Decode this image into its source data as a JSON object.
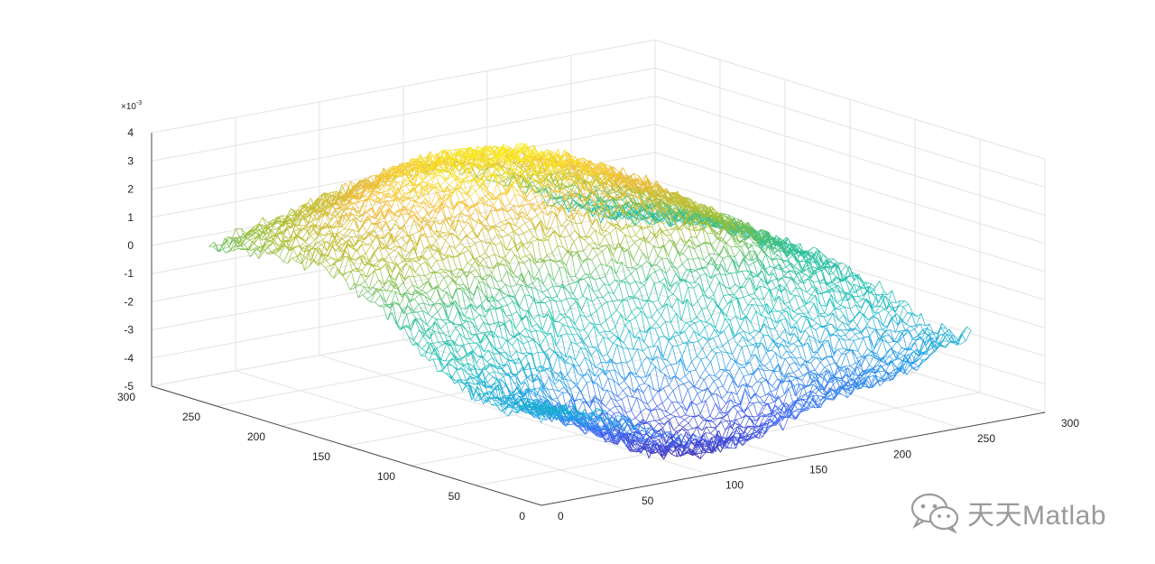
{
  "chart_data": {
    "type": "surface-mesh",
    "title": "",
    "xlabel": "",
    "ylabel": "",
    "zlabel": "",
    "x_ticks": [
      "0",
      "50",
      "100",
      "150",
      "200",
      "250",
      "300"
    ],
    "y_ticks": [
      "0",
      "50",
      "100",
      "150",
      "200",
      "250",
      "300"
    ],
    "z_ticks": [
      "-5",
      "-4",
      "-3",
      "-2",
      "-1",
      "0",
      "1",
      "2",
      "3",
      "4"
    ],
    "z_exponent_base": "×10",
    "z_exponent_power": "-3",
    "xlim": [
      0,
      300
    ],
    "ylim": [
      0,
      300
    ],
    "zlim": [
      -5,
      4
    ],
    "colormap": [
      "#3e26a8",
      "#3e62f3",
      "#1f9ee8",
      "#17beb9",
      "#2fbf8f",
      "#a6be30",
      "#f3bc3a",
      "#f9fb15"
    ],
    "grid": true,
    "data_range_xy": [
      0,
      256
    ],
    "zmin_approx": -4.9,
    "zmax_approx": 3.6
  },
  "watermark": {
    "text": "天天Matlab",
    "icon": "wechat-icon"
  }
}
